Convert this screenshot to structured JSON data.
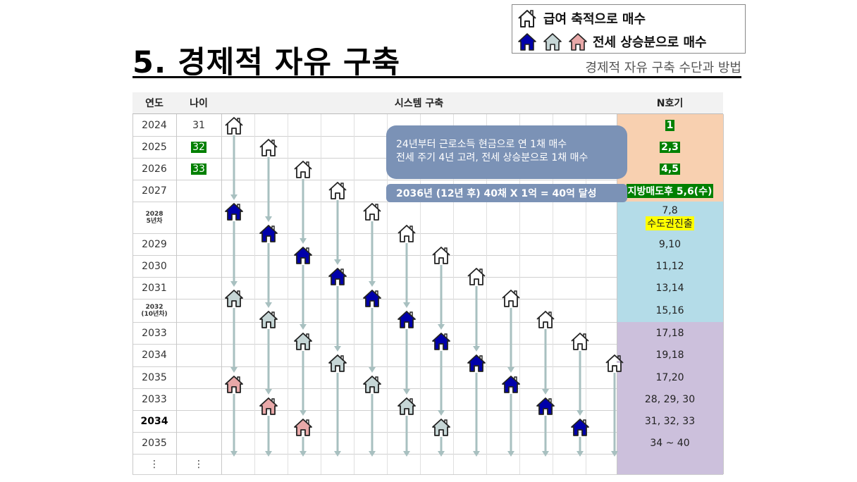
{
  "title": "5. 경제적 자유 구축",
  "subtitle": "경제적 자유 구축 수단과 방법",
  "legend": {
    "row1_label": "급여 축적으로 매수",
    "row2_label": "전세 상승분으로 매수"
  },
  "table": {
    "headers": {
      "year": "연도",
      "age": "나이",
      "system": "시스템 구축",
      "n": "N호기"
    },
    "rows": [
      {
        "year": "2024",
        "age": "31",
        "n": "1"
      },
      {
        "year": "2025",
        "age": "32",
        "n": "2,3"
      },
      {
        "year": "2026",
        "age": "33",
        "n": "4,5"
      },
      {
        "year": "2027",
        "age": "",
        "n": "지방매도후 5,6(수)"
      },
      {
        "year": "2028",
        "year2": "5년차",
        "age": "",
        "n": "7,8",
        "n2": "수도권진출"
      },
      {
        "year": "2029",
        "age": "",
        "n": "9,10"
      },
      {
        "year": "2030",
        "age": "",
        "n": "11,12"
      },
      {
        "year": "2031",
        "age": "",
        "n": "13,14"
      },
      {
        "year": "2032",
        "year2": "(10년차)",
        "age": "",
        "n": "15,16"
      },
      {
        "year": "2033",
        "age": "",
        "n": "17,18"
      },
      {
        "year": "2034",
        "age": "",
        "n": "19,18"
      },
      {
        "year": "2035",
        "age": "",
        "n": "17,20"
      },
      {
        "year": "2033",
        "age": "",
        "n": "28, 29, 30"
      },
      {
        "year": "2034",
        "age": "",
        "n": "31, 32, 33"
      },
      {
        "year": "2035",
        "age": "",
        "n": "34 ~ 40"
      },
      {
        "year": "⋮",
        "age": "⋮",
        "n": ""
      }
    ]
  },
  "callouts": {
    "line1": "24년부터 근로소득 현금으로 연 1채 매수",
    "line2": "전세 주기 4년 고려, 전세 상승분으로 1채 매수",
    "result": "2036년 (12년  후) 40채 X 1억 = 40억 달성"
  },
  "colors": {
    "white_house": "#ffffff",
    "blue_house": "#0000aa",
    "gray_house": "#c6d6d6",
    "pink_house": "#e8a8a8",
    "n_orange": "#f8d0b0",
    "n_blue": "#b4dce8",
    "n_purple": "#ccc0dc",
    "arrow": "#a8c0c0",
    "callout": "#7b92b6"
  }
}
